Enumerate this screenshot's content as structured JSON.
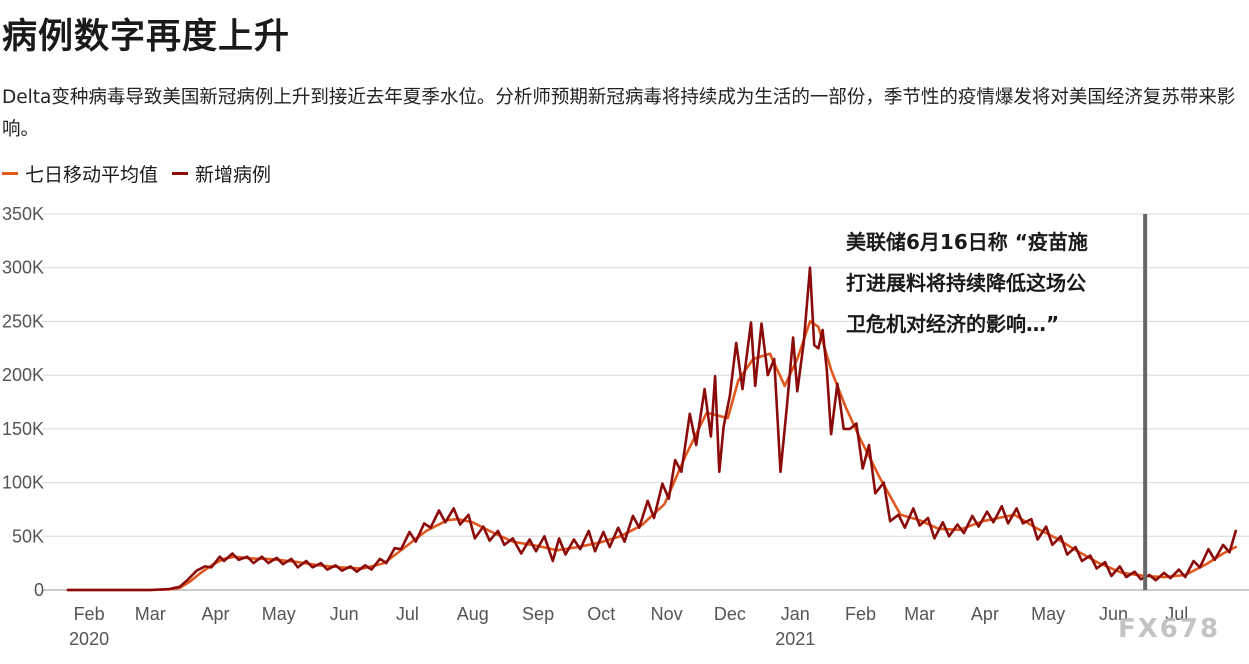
{
  "title": "病例数字再度上升",
  "subtitle": "Delta变种病毒导致美国新冠病例上升到接近去年夏季水位。分析师预期新冠病毒将持续成为生活的一部份，季节性的疫情爆发将对美国经济复苏带来影响。",
  "watermark": "FX678",
  "colors": {
    "avg": "#e0581e",
    "daily": "#8b0a0a",
    "grid": "#d8d8d8",
    "marker": "#666666"
  },
  "chart_data": {
    "type": "line",
    "title": "病例数字再度上升",
    "legend": [
      "七日移动平均值",
      "新增病例"
    ],
    "legend_position": "top-left",
    "grid": true,
    "ylim": [
      0,
      350000
    ],
    "y_ticks": [
      0,
      50000,
      100000,
      150000,
      200000,
      250000,
      300000,
      350000
    ],
    "y_tick_labels": [
      "0",
      "50K",
      "100K",
      "150K",
      "200K",
      "250K",
      "300K",
      "350K"
    ],
    "x_ticks": [
      {
        "date": "2020-02-01",
        "label": "Feb",
        "year": "2020"
      },
      {
        "date": "2020-03-01",
        "label": "Mar"
      },
      {
        "date": "2020-04-01",
        "label": "Apr"
      },
      {
        "date": "2020-05-01",
        "label": "May"
      },
      {
        "date": "2020-06-01",
        "label": "Jun"
      },
      {
        "date": "2020-07-01",
        "label": "Jul"
      },
      {
        "date": "2020-08-01",
        "label": "Aug"
      },
      {
        "date": "2020-09-01",
        "label": "Sep"
      },
      {
        "date": "2020-10-01",
        "label": "Oct"
      },
      {
        "date": "2020-11-01",
        "label": "Nov"
      },
      {
        "date": "2020-12-01",
        "label": "Dec"
      },
      {
        "date": "2021-01-01",
        "label": "Jan",
        "year": "2021"
      },
      {
        "date": "2021-02-01",
        "label": "Feb"
      },
      {
        "date": "2021-03-01",
        "label": "Mar"
      },
      {
        "date": "2021-04-01",
        "label": "Apr"
      },
      {
        "date": "2021-05-01",
        "label": "May"
      },
      {
        "date": "2021-06-01",
        "label": "Jun"
      },
      {
        "date": "2021-07-01",
        "label": "Jul"
      }
    ],
    "xlim": [
      "2020-01-22",
      "2021-07-31"
    ],
    "annotation": {
      "date": "2021-06-16",
      "lines": [
        "美联储6月16日称 “疫苗施",
        "打进展料将持续降低这场公",
        "卫危机对经济的影响…”"
      ]
    },
    "series": [
      {
        "name": "七日移动平均值",
        "points": [
          [
            "2020-01-22",
            0
          ],
          [
            "2020-03-01",
            0
          ],
          [
            "2020-03-10",
            500
          ],
          [
            "2020-03-15",
            2000
          ],
          [
            "2020-03-20",
            8000
          ],
          [
            "2020-03-25",
            16000
          ],
          [
            "2020-03-31",
            24000
          ],
          [
            "2020-04-05",
            29000
          ],
          [
            "2020-04-10",
            31000
          ],
          [
            "2020-04-15",
            30000
          ],
          [
            "2020-04-20",
            29000
          ],
          [
            "2020-04-25",
            29000
          ],
          [
            "2020-05-01",
            28000
          ],
          [
            "2020-05-10",
            26000
          ],
          [
            "2020-05-20",
            23000
          ],
          [
            "2020-05-31",
            21000
          ],
          [
            "2020-06-10",
            20000
          ],
          [
            "2020-06-20",
            25000
          ],
          [
            "2020-06-30",
            40000
          ],
          [
            "2020-07-10",
            55000
          ],
          [
            "2020-07-20",
            65000
          ],
          [
            "2020-07-25",
            66000
          ],
          [
            "2020-08-01",
            63000
          ],
          [
            "2020-08-10",
            54000
          ],
          [
            "2020-08-20",
            45000
          ],
          [
            "2020-09-01",
            41000
          ],
          [
            "2020-09-10",
            37000
          ],
          [
            "2020-09-20",
            40000
          ],
          [
            "2020-09-30",
            44000
          ],
          [
            "2020-10-10",
            50000
          ],
          [
            "2020-10-20",
            60000
          ],
          [
            "2020-10-31",
            80000
          ],
          [
            "2020-11-10",
            125000
          ],
          [
            "2020-11-20",
            165000
          ],
          [
            "2020-11-30",
            160000
          ],
          [
            "2020-12-05",
            195000
          ],
          [
            "2020-12-12",
            215000
          ],
          [
            "2020-12-20",
            220000
          ],
          [
            "2020-12-27",
            190000
          ],
          [
            "2021-01-02",
            215000
          ],
          [
            "2021-01-08",
            250000
          ],
          [
            "2021-01-12",
            245000
          ],
          [
            "2021-01-18",
            205000
          ],
          [
            "2021-01-25",
            170000
          ],
          [
            "2021-02-01",
            140000
          ],
          [
            "2021-02-10",
            105000
          ],
          [
            "2021-02-20",
            70000
          ],
          [
            "2021-03-01",
            65000
          ],
          [
            "2021-03-10",
            57000
          ],
          [
            "2021-03-20",
            56000
          ],
          [
            "2021-03-31",
            64000
          ],
          [
            "2021-04-10",
            68000
          ],
          [
            "2021-04-15",
            70000
          ],
          [
            "2021-04-25",
            58000
          ],
          [
            "2021-05-05",
            48000
          ],
          [
            "2021-05-15",
            36000
          ],
          [
            "2021-05-25",
            25000
          ],
          [
            "2021-06-05",
            16000
          ],
          [
            "2021-06-16",
            13000
          ],
          [
            "2021-06-25",
            12000
          ],
          [
            "2021-07-05",
            14000
          ],
          [
            "2021-07-15",
            24000
          ],
          [
            "2021-07-23",
            34000
          ],
          [
            "2021-07-29",
            40000
          ]
        ]
      },
      {
        "name": "新增病例",
        "points": [
          [
            "2020-01-22",
            0
          ],
          [
            "2020-03-01",
            0
          ],
          [
            "2020-03-10",
            900
          ],
          [
            "2020-03-15",
            3000
          ],
          [
            "2020-03-19",
            10000
          ],
          [
            "2020-03-23",
            18000
          ],
          [
            "2020-03-27",
            22000
          ],
          [
            "2020-03-30",
            21000
          ],
          [
            "2020-04-03",
            31000
          ],
          [
            "2020-04-05",
            27000
          ],
          [
            "2020-04-09",
            34000
          ],
          [
            "2020-04-12",
            28000
          ],
          [
            "2020-04-16",
            31000
          ],
          [
            "2020-04-19",
            25000
          ],
          [
            "2020-04-23",
            31000
          ],
          [
            "2020-04-26",
            25000
          ],
          [
            "2020-04-30",
            30000
          ],
          [
            "2020-05-03",
            24000
          ],
          [
            "2020-05-07",
            29000
          ],
          [
            "2020-05-10",
            21000
          ],
          [
            "2020-05-14",
            27000
          ],
          [
            "2020-05-17",
            21000
          ],
          [
            "2020-05-21",
            25000
          ],
          [
            "2020-05-24",
            19000
          ],
          [
            "2020-05-28",
            23000
          ],
          [
            "2020-05-31",
            18000
          ],
          [
            "2020-06-04",
            22000
          ],
          [
            "2020-06-07",
            17000
          ],
          [
            "2020-06-11",
            23000
          ],
          [
            "2020-06-14",
            19000
          ],
          [
            "2020-06-18",
            29000
          ],
          [
            "2020-06-21",
            25000
          ],
          [
            "2020-06-25",
            39000
          ],
          [
            "2020-06-28",
            38000
          ],
          [
            "2020-07-02",
            54000
          ],
          [
            "2020-07-05",
            45000
          ],
          [
            "2020-07-09",
            62000
          ],
          [
            "2020-07-12",
            58000
          ],
          [
            "2020-07-16",
            74000
          ],
          [
            "2020-07-19",
            63000
          ],
          [
            "2020-07-23",
            76000
          ],
          [
            "2020-07-26",
            61000
          ],
          [
            "2020-07-30",
            70000
          ],
          [
            "2020-08-02",
            48000
          ],
          [
            "2020-08-06",
            59000
          ],
          [
            "2020-08-09",
            46000
          ],
          [
            "2020-08-13",
            55000
          ],
          [
            "2020-08-16",
            42000
          ],
          [
            "2020-08-20",
            48000
          ],
          [
            "2020-08-24",
            34000
          ],
          [
            "2020-08-28",
            47000
          ],
          [
            "2020-08-31",
            36000
          ],
          [
            "2020-09-04",
            50000
          ],
          [
            "2020-09-08",
            27000
          ],
          [
            "2020-09-11",
            48000
          ],
          [
            "2020-09-14",
            33000
          ],
          [
            "2020-09-18",
            47000
          ],
          [
            "2020-09-21",
            38000
          ],
          [
            "2020-09-25",
            55000
          ],
          [
            "2020-09-28",
            36000
          ],
          [
            "2020-10-02",
            54000
          ],
          [
            "2020-10-05",
            40000
          ],
          [
            "2020-10-09",
            58000
          ],
          [
            "2020-10-12",
            45000
          ],
          [
            "2020-10-16",
            69000
          ],
          [
            "2020-10-19",
            58000
          ],
          [
            "2020-10-23",
            83000
          ],
          [
            "2020-10-26",
            67000
          ],
          [
            "2020-10-30",
            99000
          ],
          [
            "2020-11-02",
            85000
          ],
          [
            "2020-11-05",
            121000
          ],
          [
            "2020-11-08",
            110000
          ],
          [
            "2020-11-12",
            164000
          ],
          [
            "2020-11-15",
            135000
          ],
          [
            "2020-11-19",
            187000
          ],
          [
            "2020-11-22",
            143000
          ],
          [
            "2020-11-24",
            199000
          ],
          [
            "2020-11-26",
            110000
          ],
          [
            "2020-11-28",
            152000
          ],
          [
            "2020-12-01",
            181000
          ],
          [
            "2020-12-04",
            230000
          ],
          [
            "2020-12-07",
            187000
          ],
          [
            "2020-12-11",
            249000
          ],
          [
            "2020-12-13",
            190000
          ],
          [
            "2020-12-16",
            248000
          ],
          [
            "2020-12-19",
            200000
          ],
          [
            "2020-12-22",
            215000
          ],
          [
            "2020-12-25",
            110000
          ],
          [
            "2020-12-28",
            170000
          ],
          [
            "2020-12-31",
            235000
          ],
          [
            "2021-01-02",
            185000
          ],
          [
            "2021-01-05",
            230000
          ],
          [
            "2021-01-08",
            300000
          ],
          [
            "2021-01-10",
            228000
          ],
          [
            "2021-01-12",
            225000
          ],
          [
            "2021-01-14",
            242000
          ],
          [
            "2021-01-16",
            205000
          ],
          [
            "2021-01-18",
            145000
          ],
          [
            "2021-01-21",
            192000
          ],
          [
            "2021-01-24",
            150000
          ],
          [
            "2021-01-27",
            150000
          ],
          [
            "2021-01-30",
            155000
          ],
          [
            "2021-02-02",
            113000
          ],
          [
            "2021-02-05",
            135000
          ],
          [
            "2021-02-08",
            90000
          ],
          [
            "2021-02-12",
            100000
          ],
          [
            "2021-02-15",
            64000
          ],
          [
            "2021-02-19",
            70000
          ],
          [
            "2021-02-22",
            58000
          ],
          [
            "2021-02-26",
            76000
          ],
          [
            "2021-03-01",
            60000
          ],
          [
            "2021-03-05",
            67000
          ],
          [
            "2021-03-08",
            48000
          ],
          [
            "2021-03-12",
            63000
          ],
          [
            "2021-03-15",
            50000
          ],
          [
            "2021-03-19",
            61000
          ],
          [
            "2021-03-22",
            53000
          ],
          [
            "2021-03-26",
            69000
          ],
          [
            "2021-03-29",
            59000
          ],
          [
            "2021-04-02",
            73000
          ],
          [
            "2021-04-05",
            63000
          ],
          [
            "2021-04-09",
            78000
          ],
          [
            "2021-04-12",
            62000
          ],
          [
            "2021-04-16",
            76000
          ],
          [
            "2021-04-19",
            62000
          ],
          [
            "2021-04-23",
            66000
          ],
          [
            "2021-04-26",
            47000
          ],
          [
            "2021-04-30",
            59000
          ],
          [
            "2021-05-03",
            42000
          ],
          [
            "2021-05-07",
            50000
          ],
          [
            "2021-05-10",
            33000
          ],
          [
            "2021-05-14",
            40000
          ],
          [
            "2021-05-17",
            27000
          ],
          [
            "2021-05-21",
            32000
          ],
          [
            "2021-05-24",
            20000
          ],
          [
            "2021-05-28",
            26000
          ],
          [
            "2021-05-31",
            13000
          ],
          [
            "2021-06-04",
            22000
          ],
          [
            "2021-06-07",
            12000
          ],
          [
            "2021-06-11",
            17000
          ],
          [
            "2021-06-14",
            10000
          ],
          [
            "2021-06-18",
            14000
          ],
          [
            "2021-06-21",
            9000
          ],
          [
            "2021-06-25",
            16000
          ],
          [
            "2021-06-28",
            11000
          ],
          [
            "2021-07-02",
            19000
          ],
          [
            "2021-07-05",
            12000
          ],
          [
            "2021-07-09",
            27000
          ],
          [
            "2021-07-12",
            21000
          ],
          [
            "2021-07-16",
            38000
          ],
          [
            "2021-07-19",
            28000
          ],
          [
            "2021-07-23",
            42000
          ],
          [
            "2021-07-26",
            35000
          ],
          [
            "2021-07-29",
            55000
          ]
        ]
      }
    ]
  }
}
